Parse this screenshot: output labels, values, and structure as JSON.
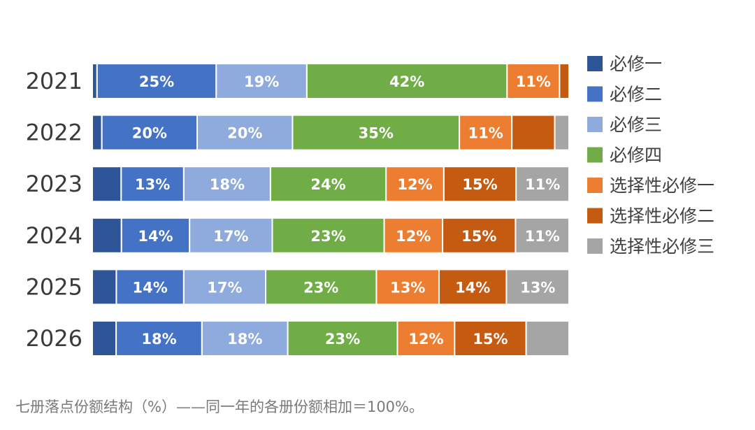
{
  "chart_data": {
    "type": "bar",
    "orientation": "horizontal",
    "stacked": "100%",
    "categories": [
      "2021",
      "2022",
      "2023",
      "2024",
      "2025",
      "2026"
    ],
    "series": [
      {
        "name": "必修一",
        "color": "#2E5597",
        "values": [
          1,
          2,
          6,
          6,
          5,
          5
        ]
      },
      {
        "name": "必修二",
        "color": "#4472C4",
        "values": [
          25,
          20,
          13,
          14,
          14,
          18
        ]
      },
      {
        "name": "必修三",
        "color": "#8FAADC",
        "values": [
          19,
          20,
          18,
          17,
          17,
          18
        ]
      },
      {
        "name": "必修四",
        "color": "#70AD47",
        "values": [
          42,
          35,
          24,
          23,
          23,
          23
        ]
      },
      {
        "name": "选择性必修一",
        "color": "#ED7D31",
        "values": [
          11,
          11,
          12,
          12,
          13,
          12
        ]
      },
      {
        "name": "选择性必修二",
        "color": "#C55A11",
        "values": [
          2,
          9,
          15,
          15,
          14,
          15
        ]
      },
      {
        "name": "选择性必修三",
        "color": "#A5A5A5",
        "values": [
          0,
          3,
          11,
          11,
          13,
          9
        ]
      }
    ],
    "data_labels": [
      [
        "",
        "25%",
        "19%",
        "42%",
        "11%",
        "",
        ""
      ],
      [
        "",
        "20%",
        "20%",
        "35%",
        "11%",
        "",
        ""
      ],
      [
        "",
        "13%",
        "18%",
        "24%",
        "12%",
        "15%",
        "11%"
      ],
      [
        "",
        "14%",
        "17%",
        "23%",
        "12%",
        "15%",
        "11%"
      ],
      [
        "",
        "14%",
        "17%",
        "23%",
        "13%",
        "14%",
        "13%"
      ],
      [
        "",
        "18%",
        "18%",
        "23%",
        "12%",
        "15%",
        ""
      ]
    ],
    "xlim": [
      0,
      100
    ],
    "legend_position": "right",
    "grid": false
  },
  "caption": "七册落点份额结构（%）——同一年的各册份额相加＝100%。"
}
